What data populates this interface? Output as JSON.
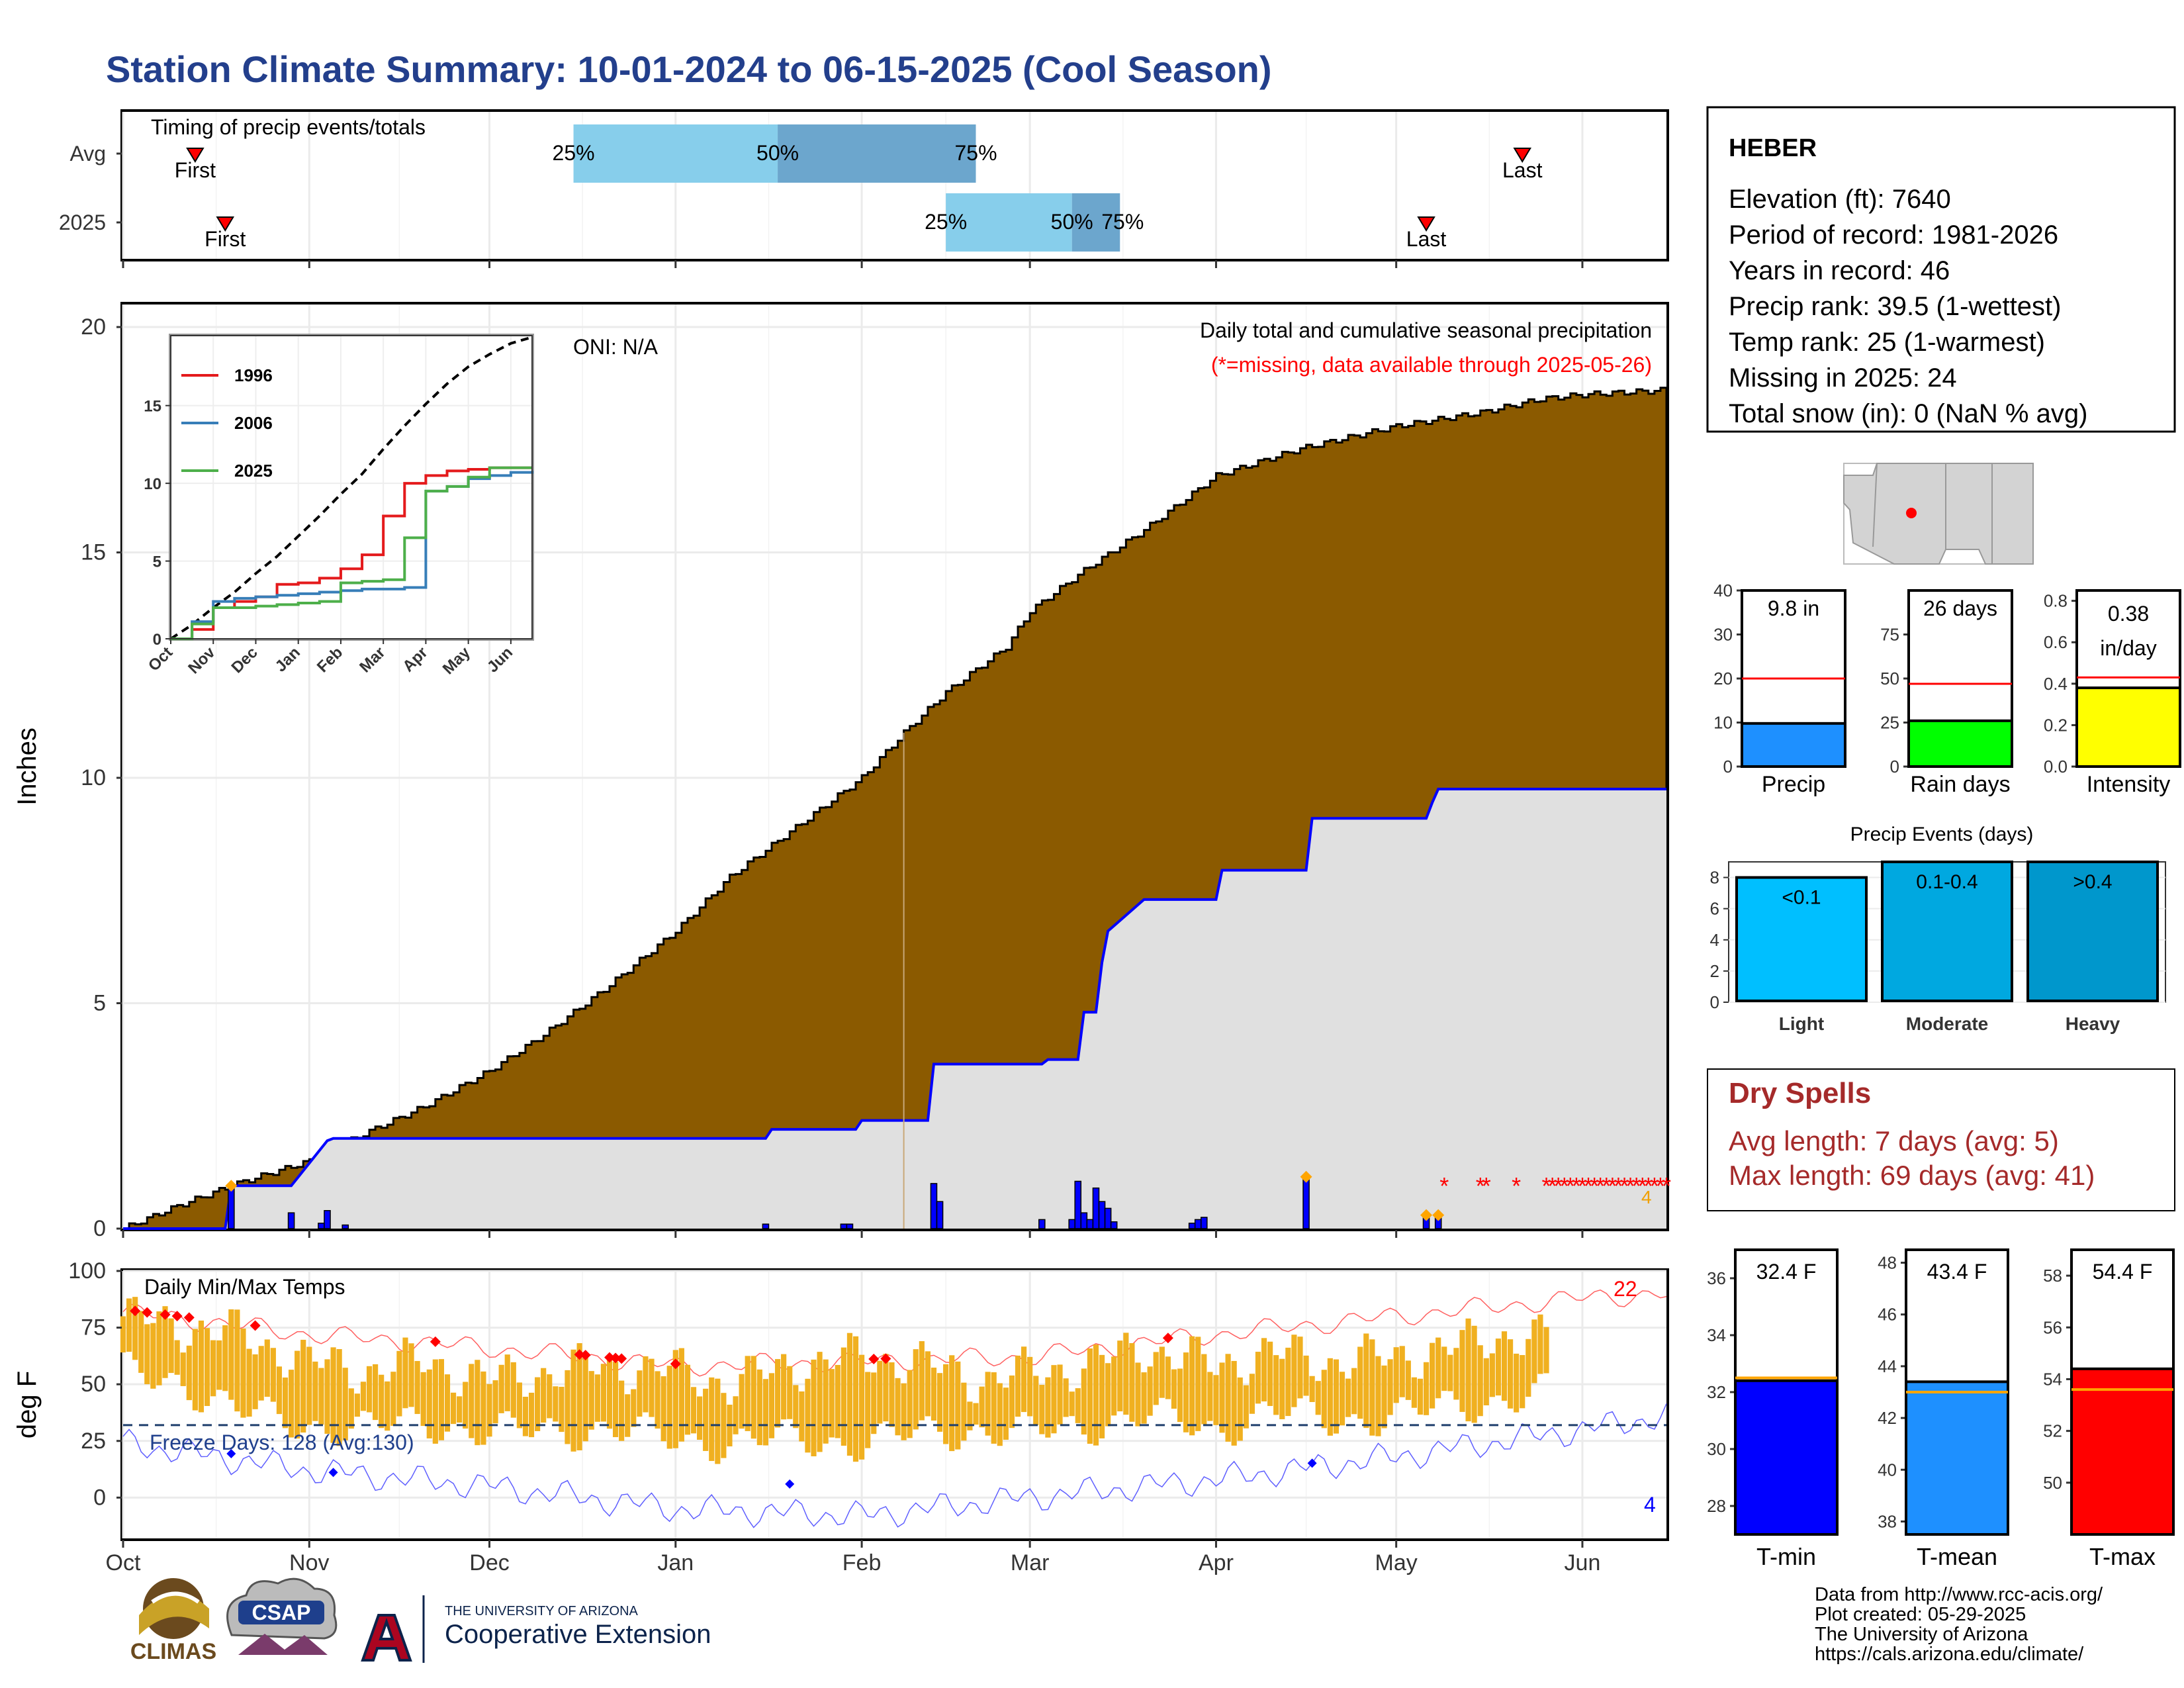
{
  "title": "Station Climate Summary: 10-01-2024 to 06-15-2025 (Cool Season)",
  "colors": {
    "title": "#233f8c",
    "cum_avg": "#8b5a00",
    "cum_2025": "#0000ff",
    "daily_bar": "#0000ff",
    "temp_bar": "#f0b020",
    "dry_spell": "#a52a2a",
    "missing": "#ff0000"
  },
  "station": {
    "name": "HEBER",
    "lines": [
      "Elevation (ft): 7640",
      "Period of record: 1981-2026",
      "Years in record: 46",
      "Precip rank: 39.5 (1-wettest)",
      "Temp rank: 25 (1-warmest)",
      "Missing in 2025: 24",
      "Total snow (in): 0 (NaN % avg)"
    ]
  },
  "timing": {
    "label": "Timing of precip events/totals",
    "rows": [
      {
        "name": "Avg",
        "first": "First",
        "last": "Last",
        "first_date": "2024-10-13",
        "last_date": "2025-05-22",
        "p25_date": "2024-12-15",
        "p50_date": "2025-01-18",
        "p75_date": "2025-02-20",
        "labels": [
          "25%",
          "50%",
          "75%"
        ]
      },
      {
        "name": "2025",
        "first": "First",
        "last": "Last",
        "first_date": "2024-10-18",
        "last_date": "2025-05-06",
        "p25_date": "2025-02-15",
        "p50_date": "2025-03-08",
        "p75_date": "2025-03-16",
        "labels": [
          "25%",
          "50%",
          "75%"
        ]
      }
    ]
  },
  "x_axis": {
    "start": "2024-10-01",
    "end": "2025-06-15",
    "ticks": [
      {
        "date": "2024-10-01",
        "label": "Oct"
      },
      {
        "date": "2024-11-01",
        "label": "Nov"
      },
      {
        "date": "2024-12-01",
        "label": "Dec"
      },
      {
        "date": "2025-01-01",
        "label": "Jan"
      },
      {
        "date": "2025-02-01",
        "label": "Feb"
      },
      {
        "date": "2025-03-01",
        "label": "Mar"
      },
      {
        "date": "2025-04-01",
        "label": "Apr"
      },
      {
        "date": "2025-05-01",
        "label": "May"
      },
      {
        "date": "2025-06-01",
        "label": "Jun"
      }
    ]
  },
  "precip": {
    "ylabel": "Inches",
    "ylim": [
      0,
      20.5
    ],
    "yticks": [
      0,
      5,
      10,
      15,
      20
    ],
    "oni": "ONI: N/A",
    "note": "Daily total and cumulative seasonal precipitation",
    "missing_note": "(*=missing, data available through 2025-05-26)",
    "missing_count_label": "4",
    "missing_dates": [
      "2025-05-09",
      "2025-05-15",
      "2025-05-16",
      "2025-05-21",
      "2025-05-26",
      "2025-05-27",
      "2025-05-28",
      "2025-05-29",
      "2025-05-30",
      "2025-05-31",
      "2025-06-01",
      "2025-06-02",
      "2025-06-03",
      "2025-06-04",
      "2025-06-05",
      "2025-06-06",
      "2025-06-07",
      "2025-06-08",
      "2025-06-09",
      "2025-06-10",
      "2025-06-11",
      "2025-06-12",
      "2025-06-13",
      "2025-06-14",
      "2025-06-15"
    ]
  },
  "temps": {
    "ylabel": "deg F",
    "label": "Daily Min/Max Temps",
    "ylim": [
      -18,
      100
    ],
    "yticks": [
      0,
      25,
      50,
      75,
      100
    ],
    "freeze_line": 32,
    "freeze_label": "Freeze Days: 128 (Avg:130)",
    "record_high_count": "22",
    "record_low_count": "4"
  },
  "inset": {
    "ylim": [
      0,
      19.5
    ],
    "yticks": [
      0,
      5,
      10,
      15
    ],
    "months": [
      "Oct",
      "Nov",
      "Dec",
      "Jan",
      "Feb",
      "Mar",
      "Apr",
      "May",
      "Jun"
    ],
    "legend": [
      {
        "name": "1996",
        "color": "#e41a1c"
      },
      {
        "name": "2006",
        "color": "#377eb8"
      },
      {
        "name": "2025",
        "color": "#4daf4a"
      }
    ]
  },
  "small_bars": [
    {
      "label": "Precip",
      "value": 9.8,
      "avg": 20,
      "value_label": "9.8 in",
      "ylim": [
        0,
        40
      ],
      "ticks": [
        0,
        10,
        20,
        30,
        40
      ],
      "color": "#1e90ff"
    },
    {
      "label": "Rain days",
      "value": 26,
      "avg": 47,
      "value_label": "26 days",
      "ylim": [
        0,
        100
      ],
      "ticks": [
        0,
        25,
        50,
        75
      ],
      "color": "#00ff00"
    },
    {
      "label": "Intensity",
      "value": 0.38,
      "avg": 0.43,
      "value_label": "0.38",
      "value_label2": "in/day",
      "ylim": [
        0,
        0.85
      ],
      "ticks": [
        0.0,
        0.2,
        0.4,
        0.6,
        0.8
      ],
      "color": "#ffff00"
    }
  ],
  "precip_events": {
    "title": "Precip Events (days)",
    "ylim": [
      0,
      9
    ],
    "ticks": [
      0,
      2,
      4,
      6,
      8
    ],
    "bars": [
      {
        "category": "Light",
        "value": 8,
        "label": "<0.1",
        "color": "#00bfff"
      },
      {
        "category": "Moderate",
        "value": 9,
        "label": "0.1-0.4",
        "color": "#00a8e0"
      },
      {
        "category": "Heavy",
        "value": 9,
        "label": ">0.4",
        "color": "#0097cc"
      }
    ]
  },
  "dry_spells": {
    "title": "Dry Spells",
    "avg_length": "Avg length: 7 days (avg: 5)",
    "max_length": "Max length: 69 days (avg: 41)"
  },
  "temp_bars": [
    {
      "label": "T-min",
      "value": 32.4,
      "avg": 32.5,
      "value_label": "32.4 F",
      "ylim": [
        27,
        37
      ],
      "ticks": [
        28,
        30,
        32,
        34,
        36
      ],
      "color": "#0000ff"
    },
    {
      "label": "T-mean",
      "value": 43.4,
      "avg": 43.0,
      "value_label": "43.4 F",
      "ylim": [
        37.5,
        48.5
      ],
      "ticks": [
        38,
        40,
        42,
        44,
        46,
        48
      ],
      "color": "#1e90ff"
    },
    {
      "label": "T-max",
      "value": 54.4,
      "avg": 53.6,
      "value_label": "54.4 F",
      "ylim": [
        48,
        59
      ],
      "ticks": [
        50,
        52,
        54,
        56,
        58
      ],
      "color": "#ff0000"
    }
  ],
  "credits": [
    "Data from http://www.rcc-acis.org/",
    "Plot created: 05-29-2025",
    "The University of Arizona",
    "https://cals.arizona.edu/climate/"
  ],
  "logos": {
    "climas": "CLIMAS",
    "csap": "CSAP",
    "ua_small": "THE UNIVERSITY OF ARIZONA",
    "ua_ext": "Cooperative Extension"
  },
  "chart_data": [
    {
      "type": "area",
      "title": "Daily total and cumulative seasonal precipitation",
      "ylabel": "Inches",
      "ylim": [
        0,
        20.5
      ],
      "series": [
        {
          "kind": "avg_cumulative",
          "x": [
            "2024-10-01",
            "2024-10-10",
            "2024-10-20",
            "2024-11-01",
            "2024-11-10",
            "2024-11-20",
            "2024-12-01",
            "2024-12-10",
            "2024-12-20",
            "2025-01-01",
            "2025-01-10",
            "2025-01-20",
            "2025-02-01",
            "2025-02-08",
            "2025-02-15",
            "2025-02-25",
            "2025-03-01",
            "2025-03-10",
            "2025-03-20",
            "2025-04-01",
            "2025-04-15",
            "2025-05-01",
            "2025-05-15",
            "2025-05-25",
            "2025-06-01",
            "2025-06-15"
          ],
          "values": [
            0,
            0.5,
            1.0,
            1.5,
            2.1,
            2.7,
            3.5,
            4.3,
            5.3,
            6.6,
            7.8,
            8.8,
            10.0,
            11.0,
            11.9,
            12.9,
            13.7,
            14.6,
            15.5,
            16.7,
            17.3,
            17.8,
            18.1,
            18.4,
            18.5,
            18.6
          ]
        },
        {
          "name": "2025",
          "kind": "cumulative",
          "x": [
            "2024-10-01",
            "2024-10-18",
            "2024-10-19",
            "2024-10-29",
            "2024-11-04",
            "2024-11-05",
            "2025-01-16",
            "2025-01-17",
            "2025-01-31",
            "2025-02-01",
            "2025-02-12",
            "2025-02-13",
            "2025-03-03",
            "2025-03-04",
            "2025-03-09",
            "2025-03-10",
            "2025-03-12",
            "2025-03-13",
            "2025-03-14",
            "2025-03-20",
            "2025-04-01",
            "2025-04-02",
            "2025-04-16",
            "2025-04-17",
            "2025-05-06",
            "2025-05-07",
            "2025-05-08",
            "2025-06-15"
          ],
          "values": [
            0,
            0,
            0.95,
            0.95,
            1.95,
            2.0,
            2.0,
            2.2,
            2.2,
            2.4,
            2.4,
            3.65,
            3.65,
            3.75,
            3.75,
            4.8,
            4.8,
            5.9,
            6.6,
            7.3,
            7.3,
            7.95,
            7.95,
            9.1,
            9.1,
            9.45,
            9.75,
            9.75
          ]
        },
        {
          "name": "daily",
          "kind": "daily_bars",
          "x": [
            "2024-10-19",
            "2024-10-29",
            "2024-11-03",
            "2024-11-04",
            "2024-11-07",
            "2025-01-16",
            "2025-01-29",
            "2025-01-30",
            "2025-02-13",
            "2025-02-14",
            "2025-03-03",
            "2025-03-08",
            "2025-03-09",
            "2025-03-10",
            "2025-03-11",
            "2025-03-12",
            "2025-03-13",
            "2025-03-14",
            "2025-03-15",
            "2025-03-28",
            "2025-03-29",
            "2025-03-30",
            "2025-04-16",
            "2025-05-06",
            "2025-05-08"
          ],
          "values": [
            0.95,
            0.35,
            0.12,
            0.4,
            0.08,
            0.1,
            0.1,
            0.1,
            1.0,
            0.6,
            0.2,
            0.2,
            1.05,
            0.35,
            0.2,
            0.9,
            0.6,
            0.45,
            0.15,
            0.12,
            0.2,
            0.25,
            1.15,
            0.3,
            0.3
          ]
        }
      ]
    },
    {
      "type": "line",
      "title": "",
      "xlabel": "",
      "ylabel": "",
      "ylim": [
        0,
        19.5
      ],
      "series": [
        {
          "name": "avg",
          "x": [
            0,
            0.5,
            1,
            1.5,
            2,
            2.5,
            3,
            3.5,
            4,
            4.5,
            5,
            5.5,
            6,
            6.5,
            7,
            7.5,
            8,
            8.5
          ],
          "values": [
            0,
            0.9,
            2,
            3,
            4.2,
            5.3,
            6.6,
            7.9,
            9.3,
            10.6,
            12.2,
            13.7,
            15.1,
            16.4,
            17.5,
            18.3,
            19.0,
            19.4
          ]
        },
        {
          "name": "1996",
          "x": [
            0,
            0.5,
            1,
            1.5,
            2,
            2.5,
            3,
            3.5,
            4,
            4.5,
            5,
            5.5,
            6,
            6.5,
            7,
            7.5,
            8,
            8.5
          ],
          "values": [
            0,
            0.6,
            2,
            2.4,
            2.7,
            3.5,
            3.6,
            3.9,
            4.5,
            5.4,
            7.9,
            10,
            10.5,
            10.8,
            10.9,
            11,
            11,
            11
          ]
        },
        {
          "name": "2006",
          "x": [
            0,
            0.5,
            1,
            1.5,
            2,
            2.5,
            3,
            3.5,
            4,
            4.5,
            5,
            5.5,
            6,
            6.5,
            7,
            7.5,
            8,
            8.5
          ],
          "values": [
            0,
            1.1,
            2.4,
            2.6,
            2.7,
            2.8,
            2.9,
            3.0,
            3.1,
            3.2,
            3.2,
            3.3,
            9.5,
            9.8,
            10.3,
            10.5,
            10.7,
            10.8
          ]
        },
        {
          "name": "2025",
          "x": [
            0,
            0.5,
            1,
            1.5,
            2,
            2.5,
            3,
            3.5,
            4,
            4.5,
            5,
            5.5,
            6,
            6.5,
            7,
            7.5,
            8,
            8.5
          ],
          "values": [
            0,
            0.95,
            2.0,
            2.0,
            2.1,
            2.2,
            2.3,
            2.4,
            3.6,
            3.7,
            3.8,
            6.5,
            9.5,
            9.8,
            10.4,
            11.0,
            11.0,
            11.0
          ]
        }
      ]
    },
    {
      "type": "bar",
      "title": "Daily Min/Max Temps",
      "ylabel": "deg F",
      "ylim": [
        -18,
        100
      ],
      "series": [
        {
          "name": "tmax",
          "x": [
            "2024-10-01",
            "2024-10-10",
            "2024-10-20",
            "2024-11-01",
            "2024-11-10",
            "2024-11-20",
            "2024-12-01",
            "2024-12-10",
            "2024-12-20",
            "2025-01-01",
            "2025-01-10",
            "2025-01-20",
            "2025-02-01",
            "2025-02-10",
            "2025-02-20",
            "2025-03-01",
            "2025-03-10",
            "2025-03-20",
            "2025-04-01",
            "2025-04-10",
            "2025-04-20",
            "2025-05-01",
            "2025-05-10",
            "2025-05-20",
            "2025-05-26"
          ],
          "values": [
            80,
            76,
            72,
            60,
            56,
            60,
            52,
            55,
            58,
            56,
            50,
            58,
            62,
            60,
            52,
            55,
            58,
            66,
            58,
            64,
            60,
            62,
            66,
            72,
            70
          ]
        },
        {
          "name": "tmin",
          "x": [
            "2024-10-01",
            "2024-10-10",
            "2024-10-20",
            "2024-11-01",
            "2024-11-10",
            "2024-11-20",
            "2024-12-01",
            "2024-12-10",
            "2024-12-20",
            "2025-01-01",
            "2025-01-10",
            "2025-01-20",
            "2025-02-01",
            "2025-02-10",
            "2025-02-20",
            "2025-03-01",
            "2025-03-10",
            "2025-03-20",
            "2025-04-01",
            "2025-04-10",
            "2025-04-20",
            "2025-05-01",
            "2025-05-10",
            "2025-05-20",
            "2025-05-26"
          ],
          "values": [
            55,
            52,
            38,
            32,
            30,
            34,
            28,
            30,
            30,
            26,
            24,
            26,
            24,
            28,
            30,
            28,
            32,
            36,
            30,
            38,
            34,
            36,
            40,
            44,
            46
          ]
        },
        {
          "name": "record_high",
          "x": [
            "2024-10-01",
            "2024-11-01",
            "2024-12-01",
            "2025-01-01",
            "2025-02-01",
            "2025-03-01",
            "2025-04-01",
            "2025-05-01",
            "2025-06-01",
            "2025-06-15"
          ],
          "values": [
            82,
            72,
            66,
            58,
            60,
            62,
            72,
            80,
            88,
            90
          ]
        },
        {
          "name": "record_low",
          "x": [
            "2024-10-01",
            "2024-11-01",
            "2024-12-01",
            "2025-01-01",
            "2025-02-01",
            "2025-03-01",
            "2025-04-01",
            "2025-05-01",
            "2025-06-01",
            "2025-06-15"
          ],
          "values": [
            24,
            12,
            5,
            -5,
            -8,
            0,
            8,
            18,
            30,
            36
          ]
        }
      ]
    }
  ]
}
